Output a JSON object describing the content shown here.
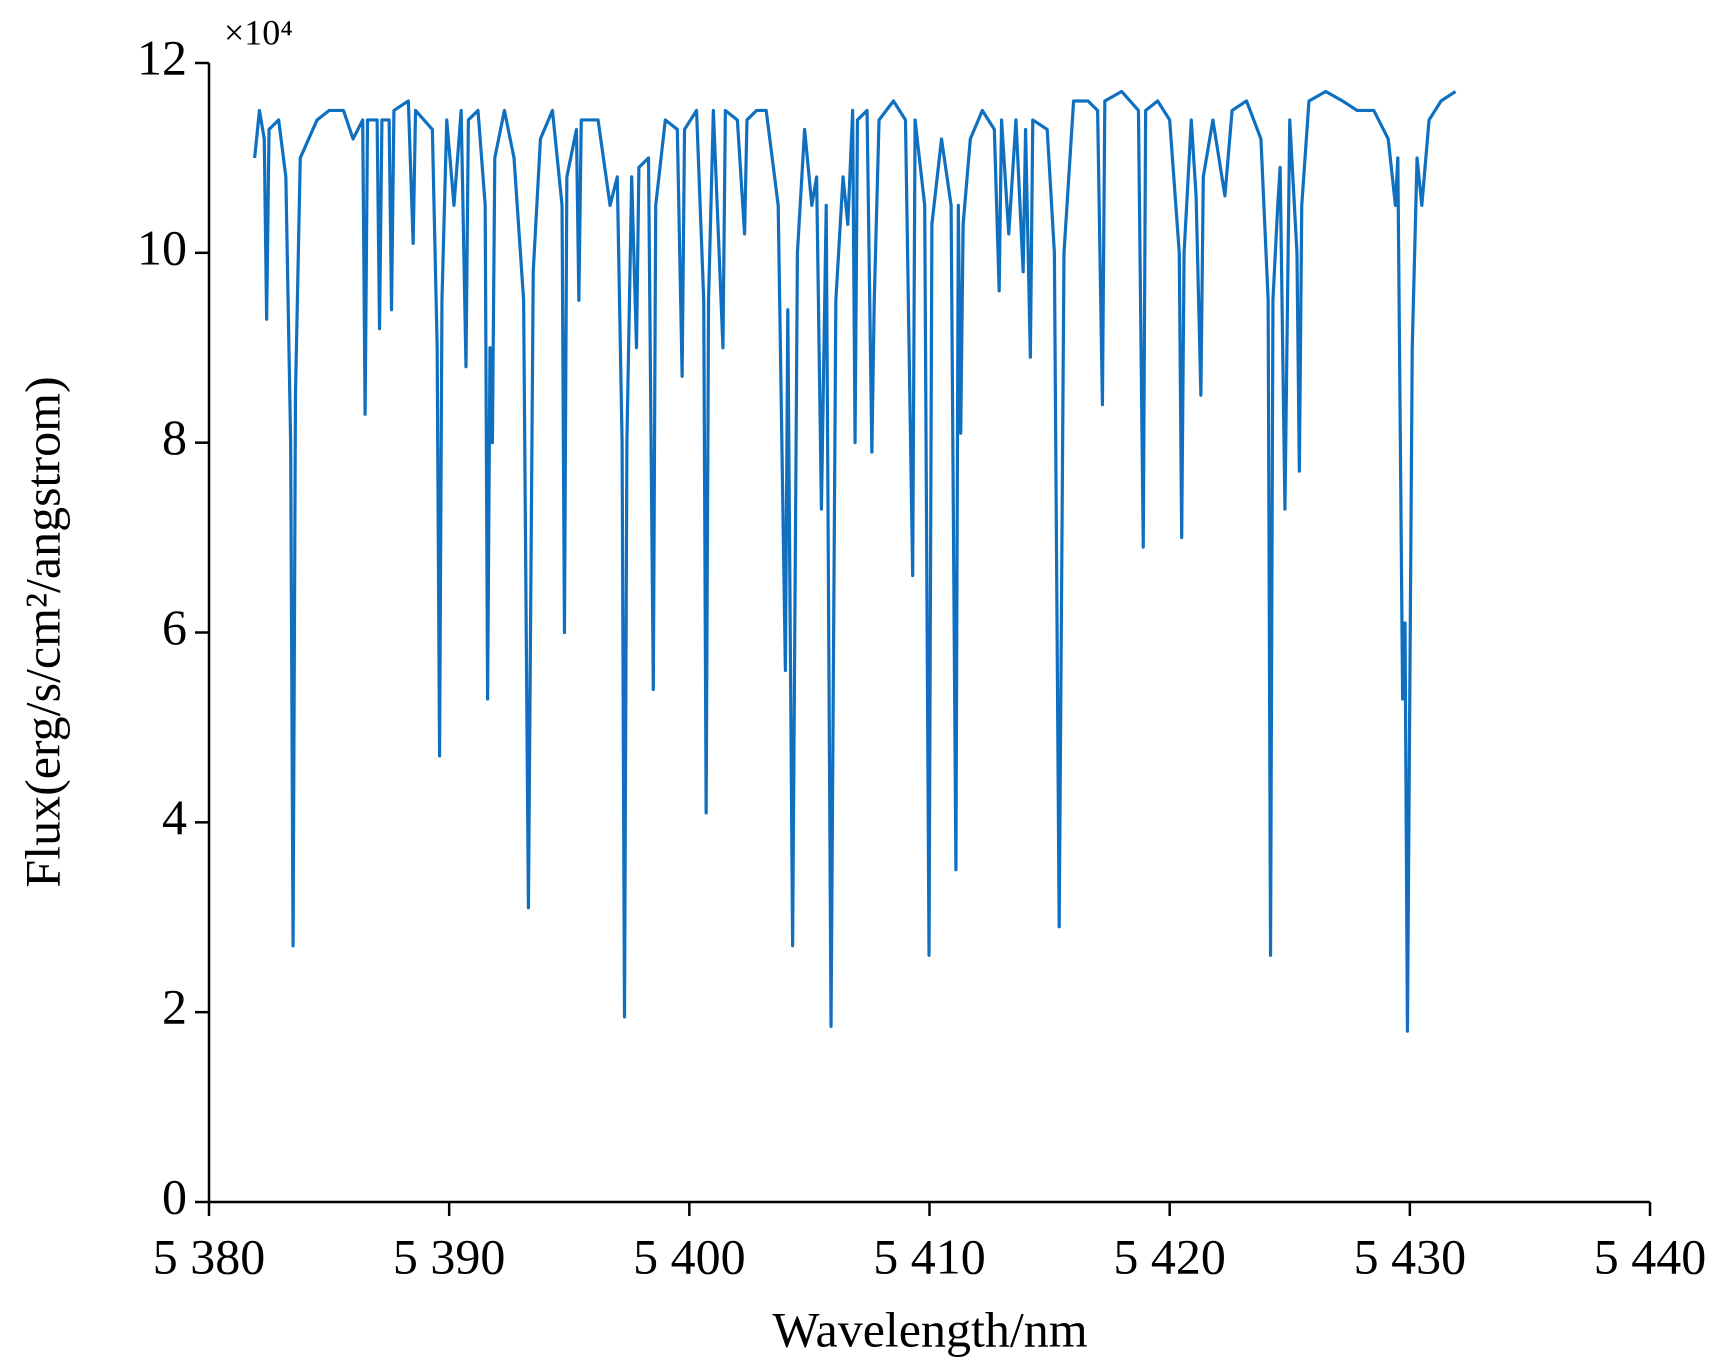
{
  "chart_data": {
    "type": "line",
    "x_label": "Wavelength/nm",
    "y_label": "Flux(erg/s/cm²/angstrom)",
    "y_multiplier": "×10⁴",
    "xlim": [
      5380,
      5440
    ],
    "xticks": [
      {
        "value": 5380,
        "label": "5 380"
      },
      {
        "value": 5390,
        "label": "5 390"
      },
      {
        "value": 5400,
        "label": "5 400"
      },
      {
        "value": 5410,
        "label": "5 410"
      },
      {
        "value": 5420,
        "label": "5 420"
      },
      {
        "value": 5430,
        "label": "5 430"
      },
      {
        "value": 5440,
        "label": "5 440"
      }
    ],
    "ylim": [
      0,
      12
    ],
    "yticks": [
      0,
      2,
      4,
      6,
      8,
      10,
      12
    ],
    "grid": false,
    "series": [
      {
        "color": "#1070c0",
        "x": [
          5381.9,
          5382.1,
          5382.3,
          5382.4,
          5382.5,
          5382.9,
          5383.2,
          5383.4,
          5383.5,
          5383.6,
          5383.8,
          5384.5,
          5385.0,
          5385.6,
          5386.0,
          5386.4,
          5386.5,
          5386.6,
          5387.0,
          5387.1,
          5387.2,
          5387.5,
          5387.6,
          5387.7,
          5388.3,
          5388.5,
          5388.6,
          5389.3,
          5389.5,
          5389.6,
          5389.7,
          5389.9,
          5390.2,
          5390.5,
          5390.7,
          5390.8,
          5391.2,
          5391.5,
          5391.6,
          5391.7,
          5391.8,
          5391.9,
          5392.3,
          5392.7,
          5393.1,
          5393.3,
          5393.5,
          5393.8,
          5394.3,
          5394.7,
          5394.8,
          5394.9,
          5395.3,
          5395.4,
          5395.5,
          5396.2,
          5396.7,
          5397.0,
          5397.2,
          5397.3,
          5397.4,
          5397.6,
          5397.8,
          5397.9,
          5398.3,
          5398.5,
          5398.6,
          5399.0,
          5399.5,
          5399.7,
          5399.8,
          5400.3,
          5400.6,
          5400.7,
          5400.8,
          5401.0,
          5401.4,
          5401.5,
          5402.0,
          5402.3,
          5402.4,
          5402.8,
          5403.2,
          5403.7,
          5404.0,
          5404.1,
          5404.3,
          5404.5,
          5404.8,
          5405.1,
          5405.3,
          5405.5,
          5405.7,
          5405.9,
          5406.1,
          5406.4,
          5406.6,
          5406.8,
          5406.9,
          5407.0,
          5407.4,
          5407.6,
          5407.7,
          5407.9,
          5408.5,
          5409.0,
          5409.3,
          5409.4,
          5409.8,
          5409.98,
          5410.1,
          5410.5,
          5410.9,
          5411.1,
          5411.2,
          5411.3,
          5411.4,
          5411.7,
          5412.2,
          5412.7,
          5412.9,
          5413.0,
          5413.3,
          5413.6,
          5413.9,
          5414.0,
          5414.2,
          5414.3,
          5414.9,
          5415.2,
          5415.4,
          5415.6,
          5416.0,
          5416.6,
          5417.0,
          5417.2,
          5417.3,
          5418.0,
          5418.7,
          5418.9,
          5419.0,
          5419.5,
          5420.0,
          5420.4,
          5420.5,
          5420.6,
          5420.9,
          5421.1,
          5421.3,
          5421.4,
          5421.8,
          5422.3,
          5422.6,
          5423.2,
          5423.8,
          5424.1,
          5424.2,
          5424.3,
          5424.5,
          5424.6,
          5424.8,
          5425.0,
          5425.3,
          5425.4,
          5425.5,
          5425.8,
          5426.5,
          5427.2,
          5427.8,
          5428.5,
          5429.1,
          5429.4,
          5429.5,
          5429.7,
          5429.8,
          5429.9,
          5430.1,
          5430.3,
          5430.5,
          5430.8,
          5431.3,
          5431.9
        ],
        "values": [
          11.0,
          11.5,
          11.2,
          9.3,
          11.3,
          11.4,
          10.8,
          8.0,
          2.7,
          8.5,
          11.0,
          11.4,
          11.5,
          11.5,
          11.2,
          11.4,
          8.3,
          11.4,
          11.4,
          9.2,
          11.4,
          11.4,
          9.4,
          11.5,
          11.6,
          10.1,
          11.5,
          11.3,
          9.0,
          4.7,
          9.5,
          11.4,
          10.5,
          11.5,
          8.8,
          11.4,
          11.5,
          10.5,
          5.3,
          9.0,
          8.0,
          11.0,
          11.5,
          11.0,
          9.5,
          3.1,
          9.8,
          11.2,
          11.5,
          10.5,
          6.0,
          10.8,
          11.3,
          9.5,
          11.4,
          11.4,
          10.5,
          10.8,
          8.0,
          1.95,
          8.0,
          10.8,
          9.0,
          10.9,
          11.0,
          5.4,
          10.5,
          11.4,
          11.3,
          8.7,
          11.3,
          11.5,
          9.5,
          4.1,
          9.5,
          11.5,
          9.0,
          11.5,
          11.4,
          10.2,
          11.4,
          11.5,
          11.5,
          10.5,
          5.6,
          9.4,
          2.7,
          10.0,
          11.3,
          10.5,
          10.8,
          7.3,
          10.5,
          1.85,
          9.5,
          10.8,
          10.3,
          11.5,
          8.0,
          11.4,
          11.5,
          7.9,
          9.5,
          11.4,
          11.6,
          11.4,
          6.6,
          11.4,
          10.5,
          2.6,
          10.3,
          11.2,
          10.5,
          3.5,
          10.5,
          8.1,
          10.3,
          11.2,
          11.5,
          11.3,
          9.6,
          11.4,
          10.2,
          11.4,
          9.8,
          11.3,
          8.9,
          11.4,
          11.3,
          10.0,
          2.9,
          10.0,
          11.6,
          11.6,
          11.5,
          8.4,
          11.6,
          11.7,
          11.5,
          6.9,
          11.5,
          11.6,
          11.4,
          10.0,
          7.0,
          10.0,
          11.4,
          10.6,
          8.5,
          10.8,
          11.4,
          10.6,
          11.5,
          11.6,
          11.2,
          9.5,
          2.6,
          9.5,
          10.5,
          10.9,
          7.3,
          11.4,
          10.0,
          7.7,
          10.5,
          11.6,
          11.7,
          11.6,
          11.5,
          11.5,
          11.2,
          10.5,
          11.0,
          5.3,
          6.1,
          1.8,
          9.0,
          11.0,
          10.5,
          11.4,
          11.6,
          11.7
        ]
      }
    ]
  }
}
